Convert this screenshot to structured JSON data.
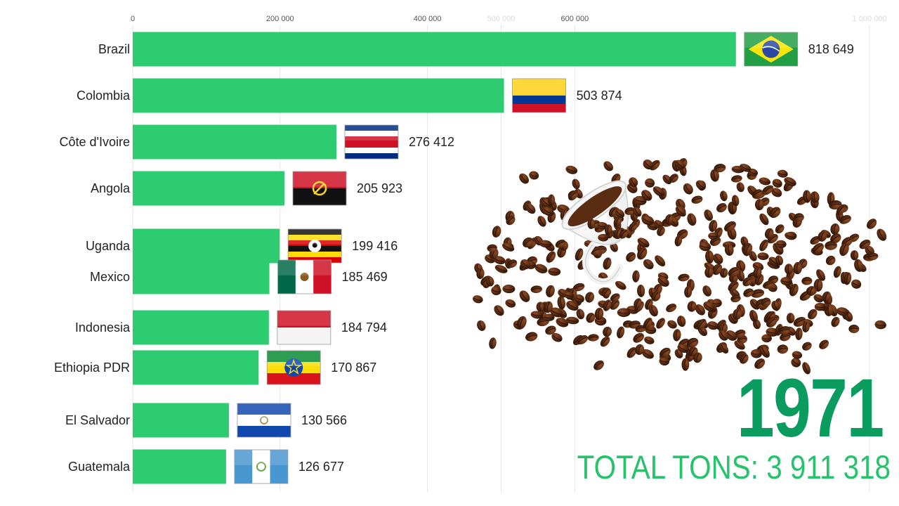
{
  "colors": {
    "bar": "#2ecc71",
    "accent": "#0a9b5e",
    "total": "#27c26b",
    "grid": "#e6e6e6"
  },
  "chart_data": {
    "type": "bar",
    "orientation": "horizontal",
    "title": "",
    "xlabel": "",
    "ylabel": "",
    "xlim": [
      0,
      1000000
    ],
    "x_ticks": [
      0,
      200000,
      400000,
      500000,
      600000,
      1000000
    ],
    "x_tick_labels": [
      "0",
      "200 000",
      "400 000",
      "500 000",
      "600 000",
      "1 000 000"
    ],
    "grid": true,
    "categories": [
      "Brazil",
      "Colombia",
      "Côte d'Ivoire",
      "Angola",
      "Uganda",
      "Mexico",
      "Indonesia",
      "Ethiopia PDR",
      "El Salvador",
      "Guatemala"
    ],
    "values": [
      818649,
      503874,
      276412,
      205923,
      199416,
      185469,
      184794,
      170867,
      130566,
      126677
    ],
    "value_labels": [
      "818 649",
      "503 874",
      "276 412",
      "205 923",
      "199 416",
      "185 469",
      "184 794",
      "170 867",
      "130 566",
      "126 677"
    ],
    "flag_icons": [
      "brazil-flag-icon",
      "colombia-flag-icon",
      "costa-rica-flag-icon",
      "angola-flag-icon",
      "uganda-flag-icon",
      "mexico-flag-icon",
      "indonesia-flag-icon",
      "ethiopia-flag-icon",
      "el-salvador-flag-icon",
      "guatemala-flag-icon"
    ]
  },
  "year": "1971",
  "total": {
    "label": "TOTAL TONS:",
    "value": "3 911 318"
  },
  "decoration": "coffee-cup-beans-icon"
}
